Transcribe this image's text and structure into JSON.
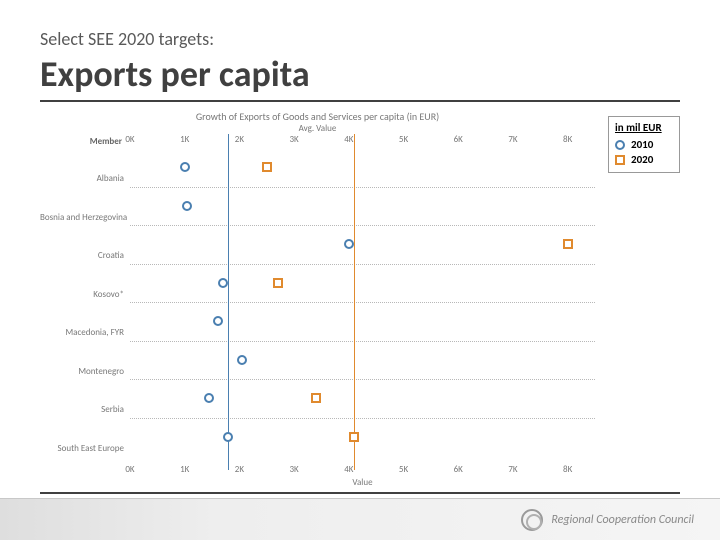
{
  "header": {
    "pre_title": "Select SEE 2020 targets:",
    "title": "Exports per capita"
  },
  "chart": {
    "type": "dot-plot",
    "title": "Growth of Exports of Goods and Services per capita (in EUR)",
    "subtitle": "Avg. Value",
    "xlabel": "Value",
    "y_header": "Member",
    "xlim": [
      0,
      8500
    ],
    "xticks": [
      0,
      1000,
      2000,
      3000,
      4000,
      5000,
      6000,
      7000,
      8000
    ],
    "xtick_labels": [
      "0K",
      "1K",
      "2K",
      "3K",
      "4K",
      "5K",
      "6K",
      "7K",
      "8K"
    ],
    "reference_lines": [
      {
        "x": 1800,
        "color": "#4a7fb0"
      },
      {
        "x": 4100,
        "color": "#e08a2e"
      }
    ],
    "categories": [
      "Albania",
      "Bosnia and Herzegovina",
      "Croatia",
      "Kosovo*",
      "Macedonia, FYR",
      "Montenegro",
      "Serbia",
      "South East Europe"
    ],
    "series": [
      {
        "name": "2010",
        "marker": "circle",
        "color": "#4a7fb0",
        "values": [
          1000,
          1050,
          4000,
          1700,
          1600,
          2050,
          1450,
          1800
        ]
      },
      {
        "name": "2020",
        "marker": "square",
        "color": "#e08a2e",
        "values": [
          2500,
          null,
          8000,
          2700,
          null,
          null,
          3400,
          4100
        ]
      }
    ],
    "row_separator_color": "#b8b8b8",
    "background_color": "#ffffff",
    "axis_fontsize": 9,
    "label_color": "#787878"
  },
  "legend": {
    "title": "in mil EUR",
    "items": [
      {
        "label": "2010",
        "marker": "circle",
        "color": "#4a7fb0"
      },
      {
        "label": "2020",
        "marker": "square",
        "color": "#e08a2e"
      }
    ]
  },
  "footer": {
    "org": "Regional Cooperation Council"
  }
}
